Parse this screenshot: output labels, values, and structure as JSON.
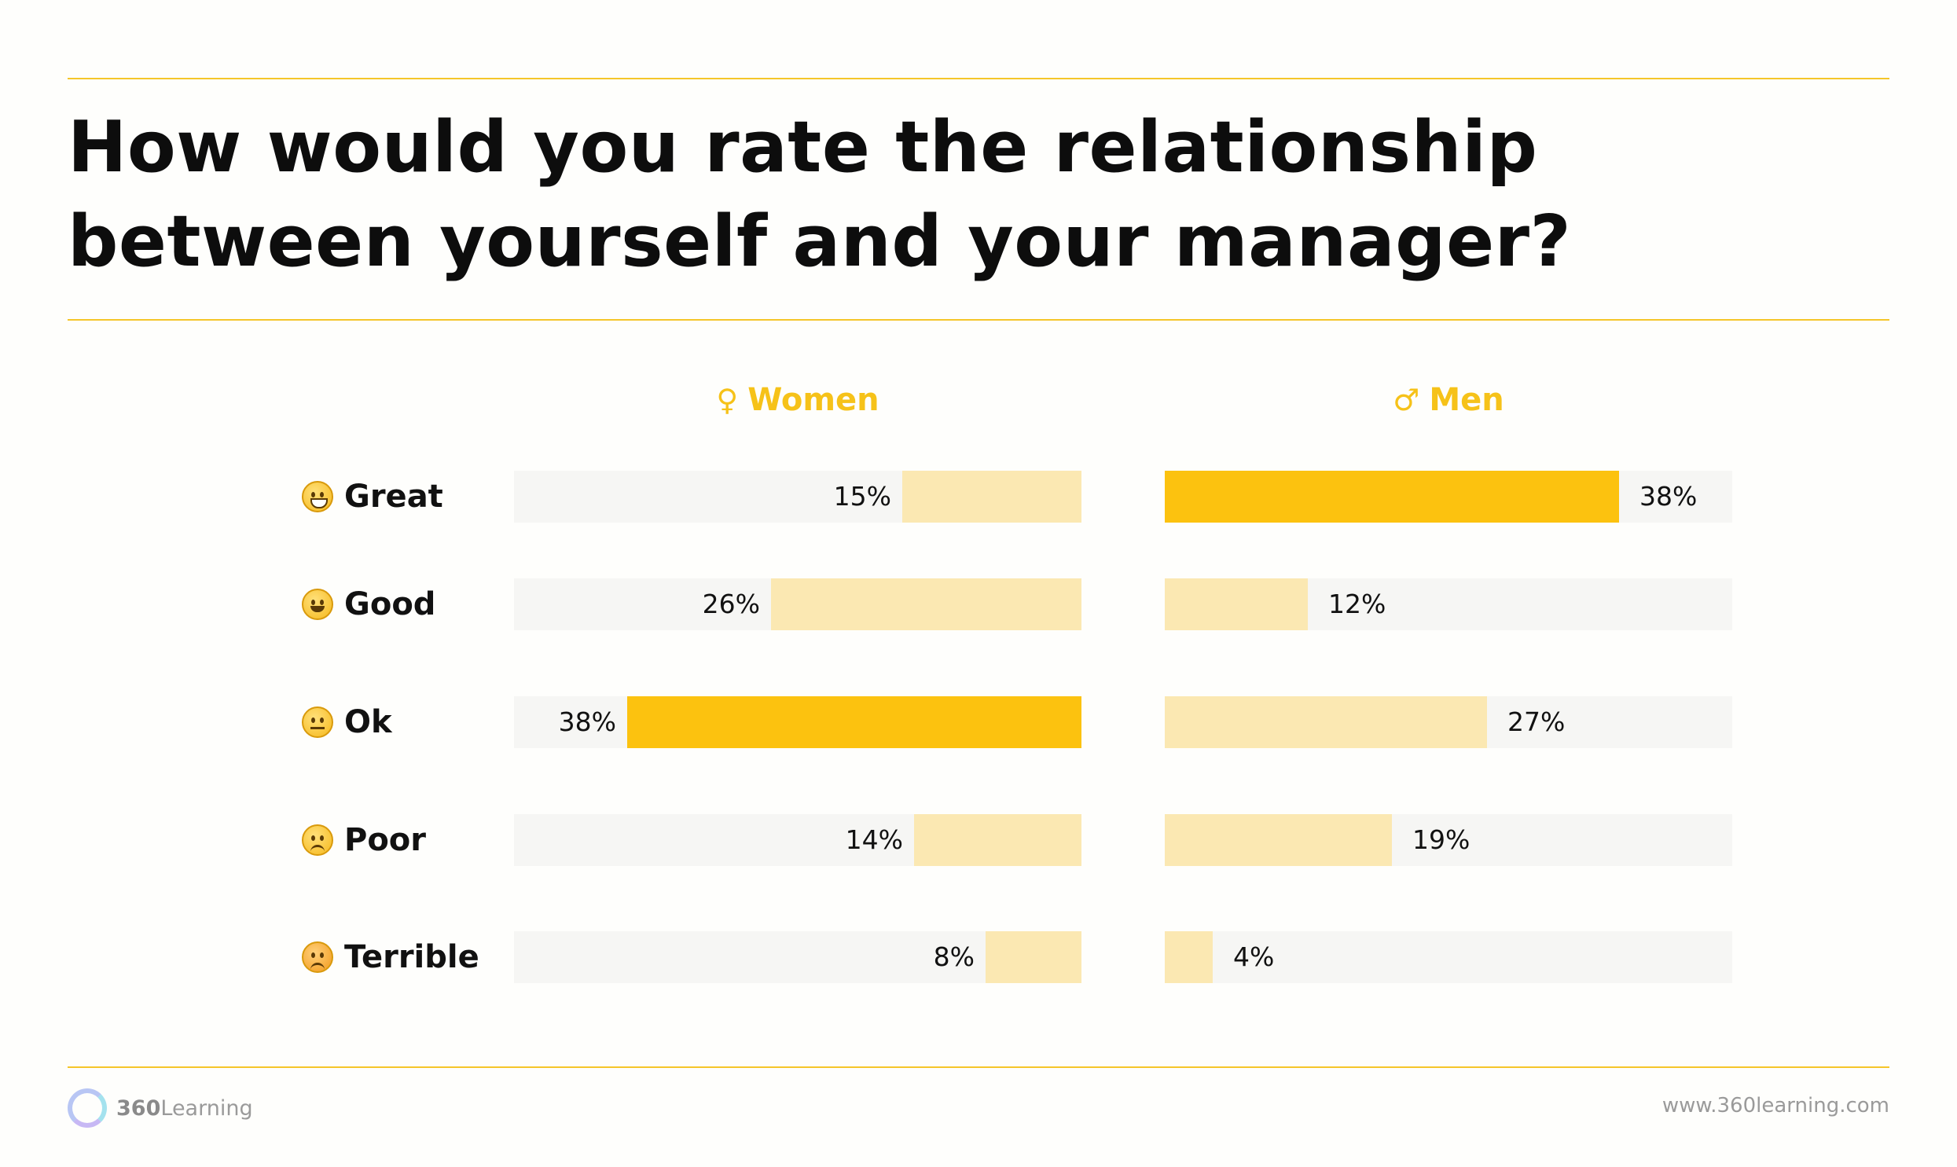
{
  "title": "How would you rate the relationship between yourself and your manager?",
  "colors": {
    "accent": "#fcc20f",
    "light": "#fbe8b2",
    "track": "#f6f6f4",
    "rule": "#f5c62a"
  },
  "chart_data": {
    "type": "bar",
    "orientation": "horizontal",
    "categories": [
      "Great",
      "Good",
      "Ok",
      "Poor",
      "Terrible"
    ],
    "category_icons": [
      "grinning-face-icon",
      "smiling-face-icon",
      "neutral-face-icon",
      "frowning-face-icon",
      "angry-face-icon"
    ],
    "series": [
      {
        "name": "Women",
        "symbol": "♀",
        "values": [
          15,
          26,
          38,
          14,
          8
        ],
        "labels": [
          "15%",
          "26%",
          "38%",
          "14%",
          "8%"
        ],
        "direction": "right-to-left"
      },
      {
        "name": "Men",
        "symbol": "♂",
        "values": [
          38,
          12,
          27,
          19,
          4
        ],
        "labels": [
          "38%",
          "12%",
          "27%",
          "19%",
          "4%"
        ],
        "direction": "left-to-right"
      }
    ],
    "xlim": [
      0,
      40
    ],
    "unit": "%",
    "highlight": "max value per series in accent color"
  },
  "footer": {
    "logo_num": "360",
    "logo_word": "Learning",
    "url": "www.360learning.com"
  }
}
